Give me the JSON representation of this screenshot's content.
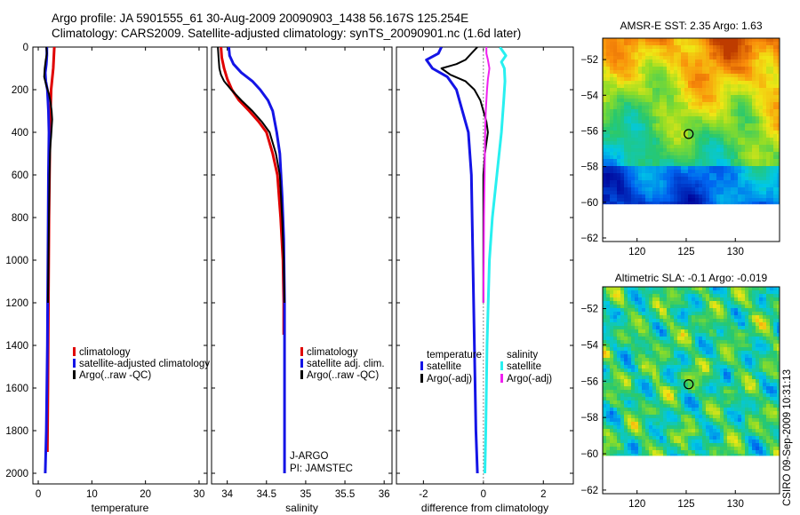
{
  "header": {
    "line1": "Argo profile: JA 5901555_61 30-Aug-2009 20090903_1438 56.167S 125.254E",
    "line2": "Climatology: CARS2009. Satellite-adjusted climatology: synTS_20090901.nc (1.6d later)"
  },
  "watermark": "CSIRO 09-Sep-2009 10:31:13",
  "colors": {
    "red": "#e00000",
    "blue": "#1414e6",
    "black": "#000000",
    "cyan": "#28f0f0",
    "magenta": "#f020f0"
  },
  "chart_data": [
    {
      "type": "line",
      "name": "temperature-panel",
      "xlabel": "temperature",
      "ylabel": "",
      "xlim": [
        -1,
        31.5
      ],
      "ylim": [
        0,
        2050
      ],
      "y_reversed": true,
      "xticks": [
        0,
        10,
        20,
        30
      ],
      "xtick_labels": [
        "0",
        "10",
        "20",
        "30"
      ],
      "yticks": [
        0,
        200,
        400,
        600,
        800,
        1000,
        1200,
        1400,
        1600,
        1800,
        2000
      ],
      "ytick_labels": [
        "0",
        "200",
        "400",
        "600",
        "800",
        "1000",
        "1200",
        "1400",
        "1600",
        "1800",
        "2000"
      ],
      "legend": [
        "climatology",
        "satellite-adjusted climatology",
        "Argo(..raw -QC)"
      ],
      "legend_colors": [
        "red",
        "blue",
        "black"
      ],
      "series": [
        {
          "name": "climatology",
          "color": "red",
          "width": 3,
          "x": [
            3.0,
            2.9,
            2.8,
            2.6,
            2.4,
            2.3,
            2.2,
            2.1,
            2.0,
            1.9,
            1.8,
            1.7
          ],
          "y": [
            0,
            50,
            100,
            150,
            200,
            300,
            400,
            600,
            800,
            1200,
            1600,
            1900
          ]
        },
        {
          "name": "satellite-adjusted climatology",
          "color": "blue",
          "width": 3,
          "x": [
            1.6,
            1.6,
            1.5,
            1.3,
            1.4,
            1.7,
            1.9,
            2.0,
            1.9,
            1.8,
            1.7,
            1.5,
            1.3
          ],
          "y": [
            0,
            40,
            80,
            120,
            160,
            200,
            300,
            400,
            600,
            1000,
            1400,
            1800,
            2000
          ]
        },
        {
          "name": "Argo(..raw -QC)",
          "color": "black",
          "width": 2,
          "x": [
            1.5,
            1.6,
            1.4,
            1.2,
            1.1,
            1.5,
            2.0,
            2.3,
            2.5,
            2.6,
            2.5,
            2.4,
            2.3,
            2.2,
            2.1,
            2.0,
            1.9,
            1.8
          ],
          "y": [
            0,
            30,
            60,
            100,
            140,
            180,
            220,
            260,
            300,
            340,
            380,
            420,
            450,
            500,
            600,
            800,
            1000,
            1200
          ]
        }
      ]
    },
    {
      "type": "line",
      "name": "salinity-panel",
      "xlabel": "salinity",
      "ylabel": "",
      "xlim": [
        33.8,
        36.1
      ],
      "ylim": [
        0,
        2050
      ],
      "y_reversed": true,
      "xticks": [
        34,
        34.5,
        35,
        35.5,
        36
      ],
      "xtick_labels": [
        "34",
        "34.5",
        "35",
        "35.5",
        "36"
      ],
      "legend": [
        "climatology",
        "satellite adj. clim.",
        "Argo(..raw -QC)"
      ],
      "legend_colors": [
        "red",
        "blue",
        "black"
      ],
      "annotations": [
        "J-ARGO",
        "PI: JAMSTEC"
      ],
      "series": [
        {
          "name": "climatology",
          "color": "red",
          "width": 3,
          "x": [
            33.92,
            33.93,
            33.96,
            34.0,
            34.06,
            34.15,
            34.28,
            34.4,
            34.5,
            34.58,
            34.64,
            34.68,
            34.71,
            34.72,
            34.72
          ],
          "y": [
            0,
            50,
            100,
            150,
            200,
            250,
            300,
            350,
            400,
            500,
            600,
            800,
            1000,
            1200,
            1350
          ]
        },
        {
          "name": "satellite adj. clim.",
          "color": "blue",
          "width": 3,
          "x": [
            34.02,
            34.03,
            34.08,
            34.18,
            34.32,
            34.42,
            34.52,
            34.58,
            34.63,
            34.67,
            34.7,
            34.72,
            34.73,
            34.73,
            34.73
          ],
          "y": [
            0,
            40,
            80,
            120,
            160,
            200,
            250,
            300,
            400,
            500,
            700,
            900,
            1200,
            1600,
            2000
          ]
        },
        {
          "name": "Argo(..raw -QC)",
          "color": "black",
          "width": 2,
          "x": [
            33.88,
            33.89,
            33.9,
            33.92,
            33.96,
            34.05,
            34.18,
            34.32,
            34.44,
            34.54,
            34.62,
            34.67,
            34.7,
            34.72,
            34.73
          ],
          "y": [
            0,
            50,
            100,
            130,
            160,
            200,
            250,
            300,
            350,
            400,
            500,
            600,
            800,
            1000,
            1200
          ]
        }
      ]
    },
    {
      "type": "line",
      "name": "difference-panel",
      "xlabel": "difference from climatology",
      "ylabel": "",
      "xlim": [
        -2.9,
        3.0
      ],
      "ylim": [
        0,
        2050
      ],
      "y_reversed": true,
      "xticks": [
        -2,
        0,
        2
      ],
      "xtick_labels": [
        "-2",
        "0",
        "2"
      ],
      "legend_groups": [
        {
          "title": "temperature",
          "items": [
            "satellite",
            "Argo(-adj)"
          ],
          "colors": [
            "blue",
            "black"
          ]
        },
        {
          "title": "salinity",
          "items": [
            "satellite",
            "Argo(-adj)"
          ],
          "colors": [
            "cyan",
            "magenta"
          ]
        }
      ],
      "series": [
        {
          "name": "temperature satellite",
          "color": "blue",
          "width": 3,
          "x": [
            -1.4,
            -1.5,
            -1.9,
            -1.7,
            -1.2,
            -0.9,
            -0.7,
            -0.5,
            -0.4,
            -0.35,
            -0.3,
            -0.25,
            -0.2
          ],
          "y": [
            0,
            30,
            60,
            100,
            140,
            200,
            300,
            400,
            600,
            1000,
            1400,
            1800,
            2000
          ]
        },
        {
          "name": "temperature Argo(-adj)",
          "color": "black",
          "width": 2,
          "x": [
            -0.2,
            -0.4,
            -0.6,
            -0.9,
            -1.4,
            -1.1,
            -0.6,
            -0.3,
            -0.1,
            0.0,
            0.1,
            0.15,
            0.1,
            0.05,
            0.0,
            0.0,
            0.0,
            0.0
          ],
          "y": [
            0,
            30,
            60,
            80,
            100,
            130,
            160,
            200,
            250,
            300,
            350,
            400,
            450,
            500,
            600,
            800,
            1000,
            1200
          ]
        },
        {
          "name": "salinity satellite",
          "color": "cyan",
          "width": 3,
          "x": [
            0.55,
            0.75,
            0.6,
            0.7,
            0.72,
            0.68,
            0.6,
            0.45,
            0.3,
            0.2,
            0.12,
            0.08,
            0.05
          ],
          "y": [
            0,
            40,
            70,
            100,
            160,
            250,
            400,
            600,
            800,
            1000,
            1400,
            1800,
            2000
          ]
        },
        {
          "name": "salinity Argo(-adj)",
          "color": "magenta",
          "width": 2,
          "x": [
            0.1,
            0.1,
            0.15,
            0.2,
            0.15,
            0.12,
            0.08,
            0.06,
            0.04,
            0.02,
            0.01,
            0.0
          ],
          "y": [
            0,
            30,
            60,
            100,
            150,
            200,
            300,
            400,
            600,
            800,
            1000,
            1200
          ]
        }
      ]
    },
    {
      "type": "heatmap",
      "name": "sst-map",
      "title": "AMSR-E SST: 2.35  Argo: 1.63",
      "xlim": [
        116.5,
        134.5
      ],
      "ylim": [
        -62.2,
        -50.8
      ],
      "xticks": [
        120,
        125,
        130
      ],
      "xtick_labels": [
        "120",
        "125",
        "130"
      ],
      "yticks": [
        -52,
        -54,
        -56,
        -58,
        -60,
        -62
      ],
      "ytick_labels": [
        "−52",
        "−54",
        "−56",
        "−58",
        "−60",
        "−62"
      ],
      "data_ylim": [
        -60.1,
        -50.8
      ],
      "marker": {
        "lon": 125.25,
        "lat": -56.17
      }
    },
    {
      "type": "heatmap",
      "name": "sla-map",
      "title": "Altimetric SLA: -0.1  Argo: -0.019",
      "xlim": [
        116.5,
        134.5
      ],
      "ylim": [
        -62.2,
        -50.8
      ],
      "xticks": [
        120,
        125,
        130
      ],
      "xtick_labels": [
        "120",
        "125",
        "130"
      ],
      "yticks": [
        -52,
        -54,
        -56,
        -58,
        -60,
        -62
      ],
      "ytick_labels": [
        "−52",
        "−54",
        "−56",
        "−58",
        "−60",
        "−62"
      ],
      "data_ylim": [
        -60.1,
        -50.8
      ],
      "marker": {
        "lon": 125.25,
        "lat": -56.17
      }
    }
  ]
}
